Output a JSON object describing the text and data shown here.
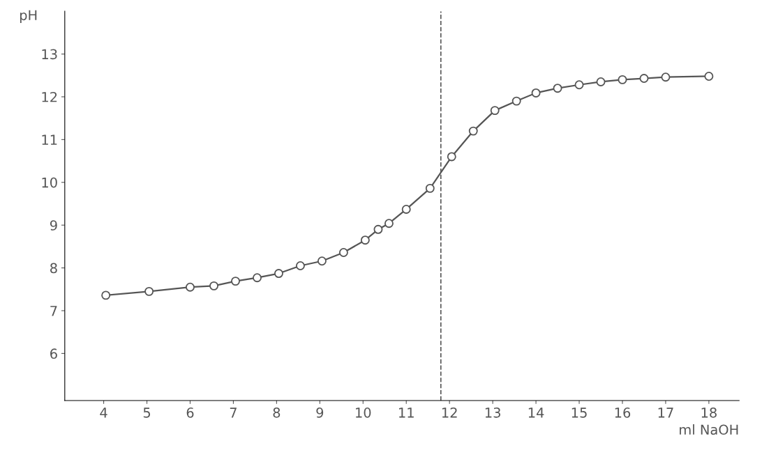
{
  "chart_data": {
    "type": "line",
    "xlabel": "ml NaOH",
    "ylabel": "pH",
    "series": [
      {
        "color": "#555555",
        "x": [
          4.05,
          5.05,
          6.0,
          6.55,
          7.05,
          7.55,
          8.05,
          8.55,
          9.05,
          9.55,
          10.05,
          10.35,
          10.6,
          11.0,
          11.55,
          12.05,
          12.55,
          13.05,
          13.55,
          14.0,
          14.5,
          15.0,
          15.5,
          16.0,
          16.5,
          17.0,
          18.0
        ],
        "values": [
          7.36,
          7.45,
          7.55,
          7.58,
          7.69,
          7.77,
          7.87,
          8.05,
          8.16,
          8.36,
          8.65,
          8.9,
          9.04,
          9.37,
          9.86,
          10.6,
          11.2,
          11.68,
          11.9,
          12.09,
          12.2,
          12.28,
          12.35,
          12.4,
          12.43,
          12.46,
          12.48
        ]
      }
    ],
    "xlim": [
      3.1,
      18.7
    ],
    "ylim": [
      4.9,
      14.0
    ],
    "xticks": [
      4,
      5,
      6,
      7,
      8,
      9,
      10,
      11,
      12,
      13,
      14,
      15,
      16,
      17,
      18
    ],
    "yticks": [
      6,
      7,
      8,
      9,
      10,
      11,
      12,
      13
    ],
    "ref_lines": [
      {
        "axis": "x",
        "value": 11.8,
        "color": "#555555",
        "line_style": "dashed"
      }
    ],
    "marker": "circle",
    "line_style": "solid",
    "grid": false
  }
}
